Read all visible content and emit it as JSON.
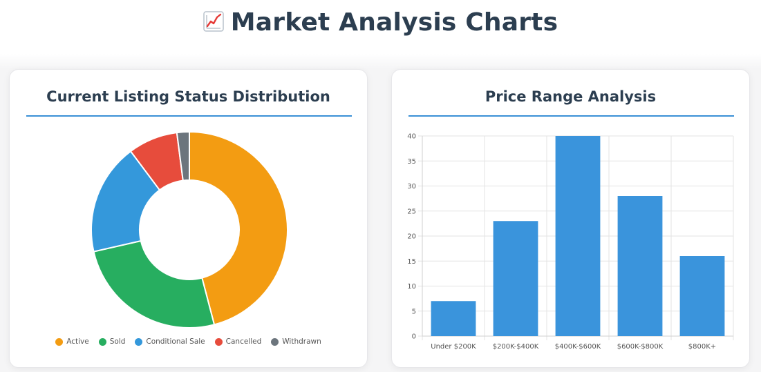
{
  "page": {
    "title": "Market Analysis Charts",
    "title_icon": "chart-increasing-icon"
  },
  "colors": {
    "title": "#2c3e50",
    "rule": "#3a8fd6",
    "bar": "#3a94dc"
  },
  "charts": {
    "status": {
      "title": "Current Listing Status Distribution"
    },
    "price": {
      "title": "Price Range Analysis"
    }
  },
  "chart_data": [
    {
      "type": "pie",
      "title": "Current Listing Status Distribution",
      "donut": true,
      "legend_placement": "bottom",
      "labels": [
        "Active",
        "Sold",
        "Conditional Sale",
        "Cancelled",
        "Withdrawn"
      ],
      "values": [
        45,
        25,
        18,
        8,
        2
      ],
      "colors": [
        "#f39c12",
        "#27ae60",
        "#3498db",
        "#e74c3c",
        "#6c757d"
      ]
    },
    {
      "type": "bar",
      "title": "Price Range Analysis",
      "categories": [
        "Under $200K",
        "$200K-$400K",
        "$400K-$600K",
        "$600K-$800K",
        "$800K+"
      ],
      "values": [
        7,
        23,
        40,
        28,
        16
      ],
      "ylim": [
        0,
        40
      ],
      "yticks": [
        0,
        5,
        10,
        15,
        20,
        25,
        30,
        35,
        40
      ],
      "grid": true,
      "legend": false,
      "xlabel": "",
      "ylabel": ""
    }
  ]
}
